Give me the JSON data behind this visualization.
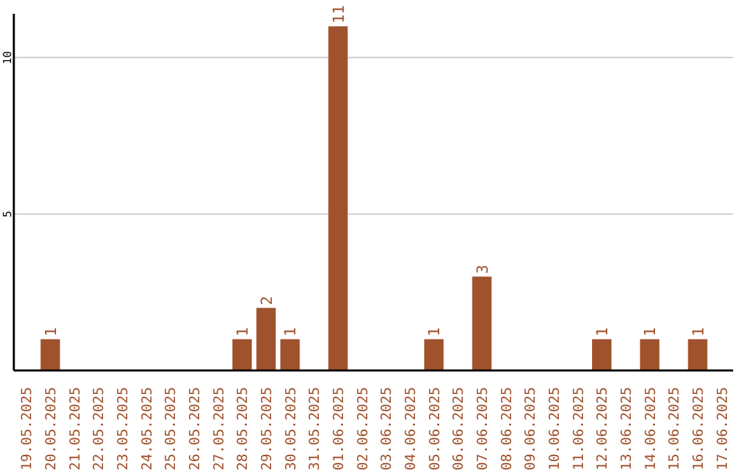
{
  "chart_data": {
    "type": "bar",
    "categories": [
      "19.05.2025",
      "20.05.2025",
      "21.05.2025",
      "22.05.2025",
      "23.05.2025",
      "24.05.2025",
      "25.05.2025",
      "26.05.2025",
      "27.05.2025",
      "28.05.2025",
      "29.05.2025",
      "30.05.2025",
      "31.05.2025",
      "01.06.2025",
      "02.06.2025",
      "03.06.2025",
      "04.06.2025",
      "05.06.2025",
      "06.06.2025",
      "07.06.2025",
      "08.06.2025",
      "09.06.2025",
      "10.06.2025",
      "11.06.2025",
      "12.06.2025",
      "13.06.2025",
      "14.06.2025",
      "15.06.2025",
      "16.06.2025",
      "17.06.2025"
    ],
    "values": [
      0,
      1,
      0,
      0,
      0,
      0,
      0,
      0,
      0,
      1,
      2,
      1,
      0,
      11,
      0,
      0,
      0,
      1,
      0,
      3,
      0,
      0,
      0,
      0,
      1,
      0,
      1,
      0,
      1,
      0
    ],
    "value_labels": [
      null,
      "1",
      null,
      null,
      null,
      null,
      null,
      null,
      null,
      "1",
      "2",
      "1",
      null,
      "11",
      null,
      null,
      null,
      "1",
      null,
      "3",
      null,
      null,
      null,
      null,
      "1",
      null,
      "1",
      null,
      "1",
      null
    ],
    "color": "#a0522d",
    "ylim": [
      0,
      11.4
    ],
    "yticks": [
      5,
      10
    ],
    "grid": "y"
  }
}
